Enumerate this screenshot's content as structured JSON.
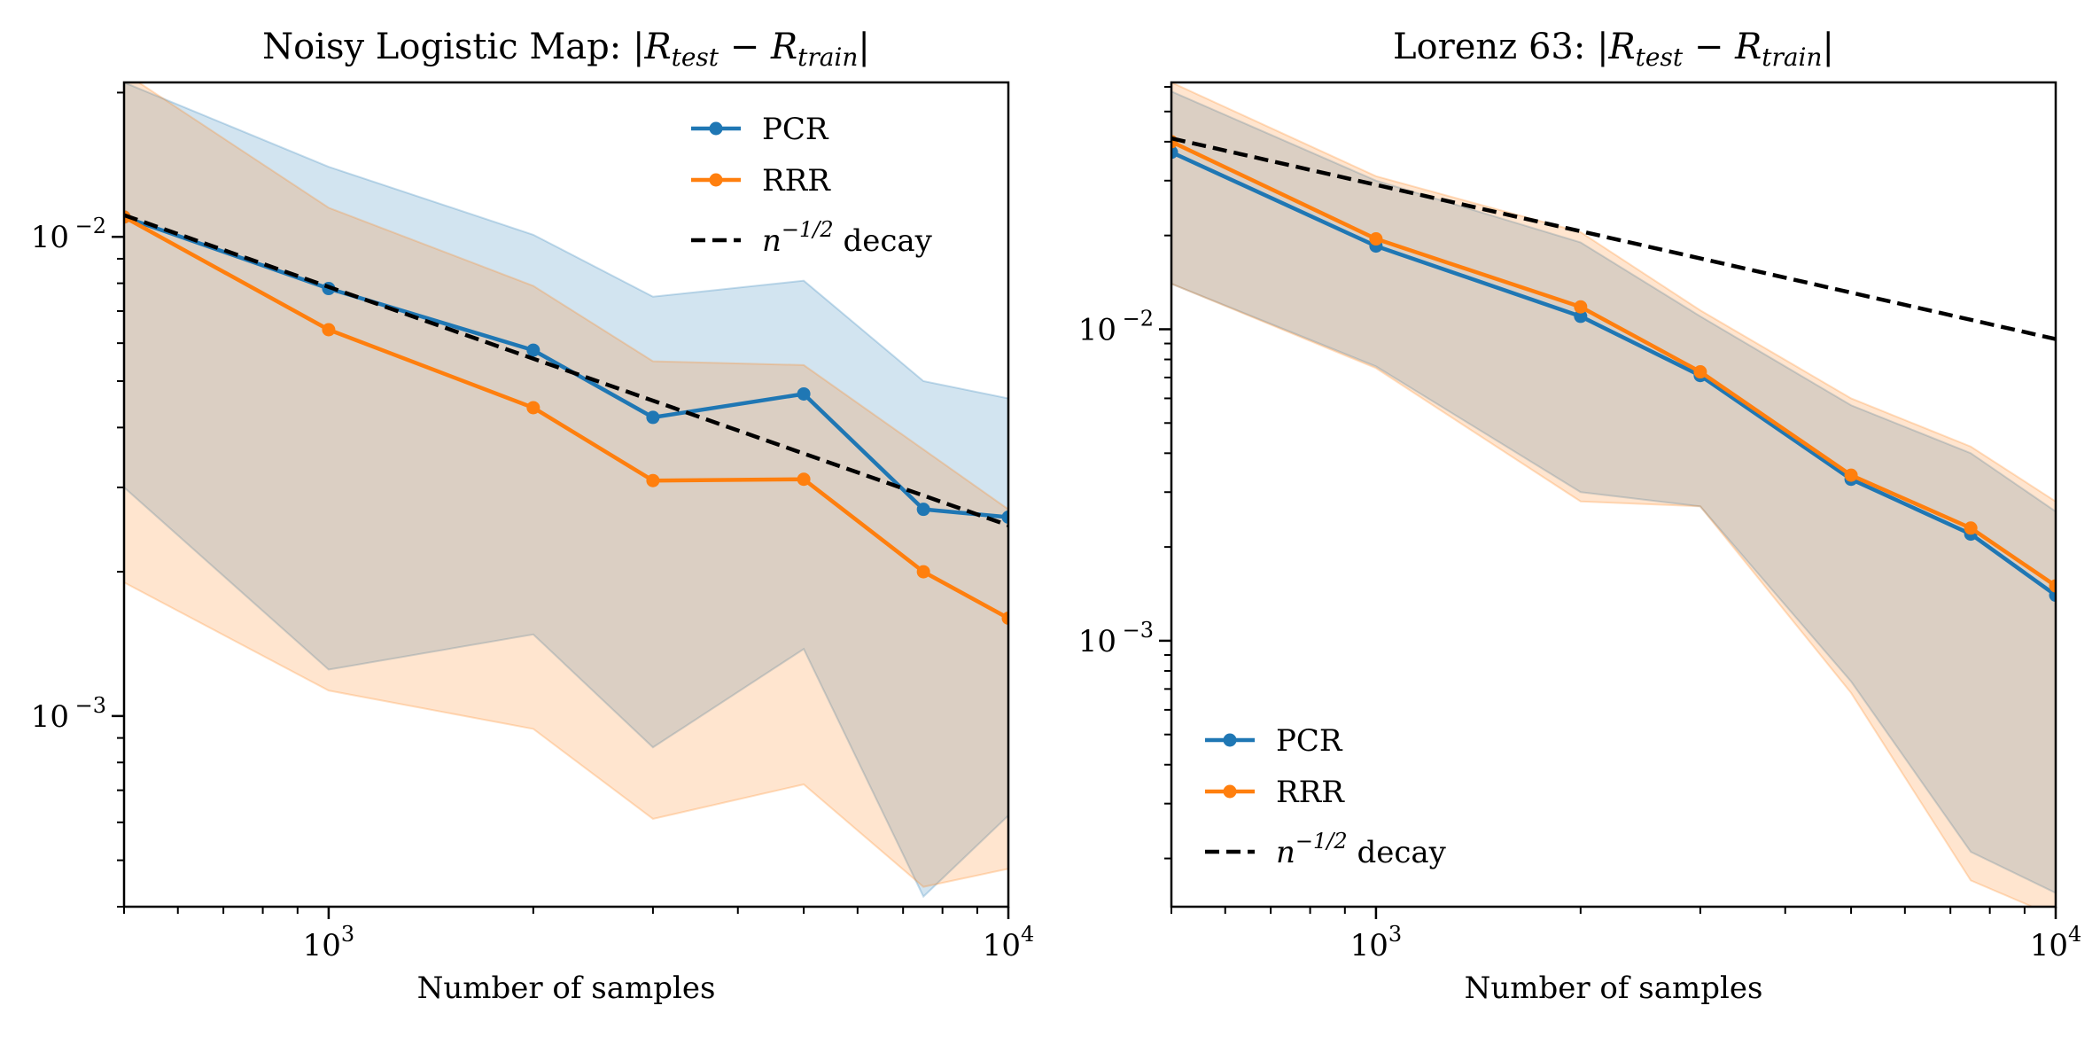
{
  "chart_data": [
    {
      "type": "line",
      "title": "Noisy Logistic Map: |R_test − R_train|",
      "title_parts": {
        "prefix": "Noisy Logistic Map: ",
        "r1": "R",
        "s1": "test",
        "minus": " − ",
        "r2": "R",
        "s2": "train"
      },
      "xlabel": "Number of samples",
      "ylabel": "",
      "xscale": "log",
      "yscale": "log",
      "xlim": [
        500,
        10000
      ],
      "ylim": [
        0.0004,
        0.021
      ],
      "xticks": [
        {
          "value": 1000,
          "base": "10",
          "exp": "3"
        },
        {
          "value": 10000,
          "base": "10",
          "exp": "4"
        }
      ],
      "yticks": [
        {
          "value": 0.01,
          "base": "10",
          "exp": "−2"
        },
        {
          "value": 0.001,
          "base": "10",
          "exp": "−3"
        }
      ],
      "legend_position": "upper right",
      "series": [
        {
          "name": "PCR",
          "color": "#1f77b4",
          "x": [
            500,
            1000,
            2000,
            3000,
            5000,
            7500,
            10000
          ],
          "y": [
            0.011,
            0.0078,
            0.0058,
            0.0042,
            0.0047,
            0.0027,
            0.0026
          ],
          "band_upper": [
            0.021,
            0.014,
            0.0101,
            0.0075,
            0.0081,
            0.005,
            0.0046
          ],
          "band_lower": [
            0.003,
            0.00125,
            0.00148,
            0.00086,
            0.00138,
            0.00042,
            0.00062
          ]
        },
        {
          "name": "RRR",
          "color": "#ff7f0e",
          "x": [
            500,
            1000,
            2000,
            3000,
            5000,
            7500,
            10000
          ],
          "y": [
            0.011,
            0.0064,
            0.0044,
            0.0031,
            0.00312,
            0.002,
            0.0016
          ],
          "band_upper": [
            0.022,
            0.0115,
            0.0079,
            0.0055,
            0.0054,
            0.0036,
            0.0027
          ],
          "band_lower": [
            0.0019,
            0.00113,
            0.00094,
            0.00061,
            0.00072,
            0.00044,
            0.00048
          ]
        }
      ],
      "reference": {
        "name_prefix": "n",
        "name_exp": "−1/2",
        "name_suffix": " decay",
        "x": [
          500,
          10000
        ],
        "y": [
          0.0111,
          0.0025
        ]
      }
    },
    {
      "type": "line",
      "title": "Lorenz 63: |R_test − R_train|",
      "title_parts": {
        "prefix": "Lorenz 63: ",
        "r1": "R",
        "s1": "test",
        "minus": " − ",
        "r2": "R",
        "s2": "train"
      },
      "xlabel": "Number of samples",
      "ylabel": "",
      "xscale": "log",
      "yscale": "log",
      "xlim": [
        500,
        10000
      ],
      "ylim": [
        0.00014,
        0.062
      ],
      "xticks": [
        {
          "value": 1000,
          "base": "10",
          "exp": "3"
        },
        {
          "value": 10000,
          "base": "10",
          "exp": "4"
        }
      ],
      "yticks": [
        {
          "value": 0.01,
          "base": "10",
          "exp": "−2"
        },
        {
          "value": 0.001,
          "base": "10",
          "exp": "−3"
        }
      ],
      "legend_position": "lower left",
      "series": [
        {
          "name": "PCR",
          "color": "#1f77b4",
          "x": [
            500,
            1000,
            2000,
            3000,
            5000,
            7500,
            10000
          ],
          "y": [
            0.037,
            0.0185,
            0.011,
            0.0071,
            0.0033,
            0.0022,
            0.0014
          ],
          "band_upper": [
            0.058,
            0.03,
            0.019,
            0.011,
            0.0057,
            0.004,
            0.0026
          ],
          "band_lower": [
            0.014,
            0.0076,
            0.003,
            0.0027,
            0.00074,
            0.00021,
            0.000155
          ]
        },
        {
          "name": "RRR",
          "color": "#ff7f0e",
          "x": [
            500,
            1000,
            2000,
            3000,
            5000,
            7500,
            10000
          ],
          "y": [
            0.04,
            0.0195,
            0.0118,
            0.0073,
            0.0034,
            0.0023,
            0.0015
          ],
          "band_upper": [
            0.062,
            0.031,
            0.0205,
            0.0115,
            0.006,
            0.0042,
            0.0028
          ],
          "band_lower": [
            0.014,
            0.0075,
            0.0028,
            0.0027,
            0.00068,
            0.00017,
            0.00013
          ]
        }
      ],
      "reference": {
        "name_prefix": "n",
        "name_exp": "−1/2",
        "name_suffix": " decay",
        "x": [
          500,
          10000
        ],
        "y": [
          0.041,
          0.0093
        ]
      }
    }
  ]
}
